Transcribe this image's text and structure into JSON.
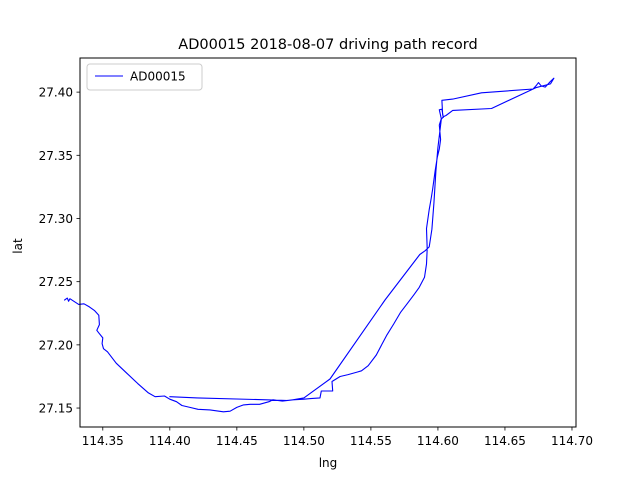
{
  "chart_data": {
    "type": "line",
    "title": "AD00015 2018-08-07 driving path record",
    "xlabel": "lng",
    "ylabel": "lat",
    "xlim": [
      114.333,
      114.703
    ],
    "ylim": [
      27.135,
      27.427
    ],
    "xticks": [
      114.35,
      114.4,
      114.45,
      114.5,
      114.55,
      114.6,
      114.65,
      114.7
    ],
    "xtick_labels": [
      "114.35",
      "114.40",
      "114.45",
      "114.50",
      "114.55",
      "114.60",
      "114.65",
      "114.70"
    ],
    "yticks": [
      27.15,
      27.2,
      27.25,
      27.3,
      27.35,
      27.4
    ],
    "ytick_labels": [
      "27.15",
      "27.20",
      "27.25",
      "27.30",
      "27.35",
      "27.40"
    ],
    "grid": false,
    "legend_position": "upper-left",
    "colors": {
      "series": "#0000ff",
      "axes": "#000000",
      "background": "#ffffff"
    },
    "series": [
      {
        "name": "AD00015",
        "x": [
          114.3215,
          114.3235,
          114.3245,
          114.3255,
          114.332,
          114.336,
          114.34,
          114.344,
          114.347,
          114.3475,
          114.3455,
          114.347,
          114.35,
          114.3495,
          114.3505,
          114.3535,
          114.36,
          114.368,
          114.376,
          114.384,
          114.389,
          114.396,
          114.4,
          114.405,
          114.409,
          114.415,
          114.421,
          114.43,
          114.44,
          114.445,
          114.45,
          114.455,
          114.46,
          114.467,
          114.474,
          114.477,
          114.484,
          114.492,
          114.5,
          114.505,
          114.512,
          114.513,
          114.518,
          114.5215,
          114.521,
          114.527,
          114.533,
          114.54,
          114.543,
          114.548,
          114.554,
          114.558,
          114.562,
          114.567,
          114.572,
          114.577,
          114.582,
          114.586,
          114.59,
          114.5915,
          114.592,
          114.5915,
          114.5935,
          114.595,
          114.596,
          114.598,
          114.5995,
          114.601,
          114.602,
          114.601,
          114.6025,
          114.601,
          114.603,
          114.604,
          114.6035,
          114.603,
          114.611,
          114.6325,
          114.671,
          114.6735,
          114.675,
          114.677,
          114.68,
          114.684,
          114.6865,
          114.684,
          114.673,
          114.64,
          114.611,
          114.606,
          114.604,
          114.6025,
          114.6,
          114.5985,
          114.597,
          114.5955,
          114.5935,
          114.5905,
          114.5865,
          114.5605,
          114.5195,
          114.5,
          114.4885,
          114.472,
          114.4205,
          114.4
        ],
        "y": [
          27.2355,
          27.237,
          27.2345,
          27.2365,
          27.232,
          27.2325,
          27.23,
          27.227,
          27.2235,
          27.216,
          27.2115,
          27.2095,
          27.2055,
          27.201,
          27.197,
          27.1945,
          27.1855,
          27.1775,
          27.1695,
          27.162,
          27.159,
          27.1595,
          27.157,
          27.155,
          27.152,
          27.1505,
          27.149,
          27.1485,
          27.147,
          27.1475,
          27.1505,
          27.1525,
          27.153,
          27.153,
          27.155,
          27.1565,
          27.1555,
          27.1565,
          27.157,
          27.1575,
          27.158,
          27.1635,
          27.1635,
          27.1635,
          27.171,
          27.175,
          27.1765,
          27.1785,
          27.1795,
          27.1835,
          27.192,
          27.2,
          27.208,
          27.2165,
          27.2255,
          27.2325,
          27.2395,
          27.2455,
          27.2535,
          27.264,
          27.276,
          27.292,
          27.307,
          27.316,
          27.323,
          27.338,
          27.3485,
          27.355,
          27.3625,
          27.374,
          27.379,
          27.386,
          27.3865,
          27.38,
          27.3825,
          27.3935,
          27.3945,
          27.3995,
          27.4025,
          27.4055,
          27.4075,
          27.405,
          27.404,
          27.4085,
          27.411,
          27.4065,
          27.4035,
          27.387,
          27.3855,
          27.3815,
          27.3805,
          27.3785,
          27.356,
          27.3375,
          27.312,
          27.2915,
          27.2775,
          27.2745,
          27.2715,
          27.2355,
          27.173,
          27.158,
          27.156,
          27.1565,
          27.158,
          27.159
        ]
      }
    ]
  }
}
